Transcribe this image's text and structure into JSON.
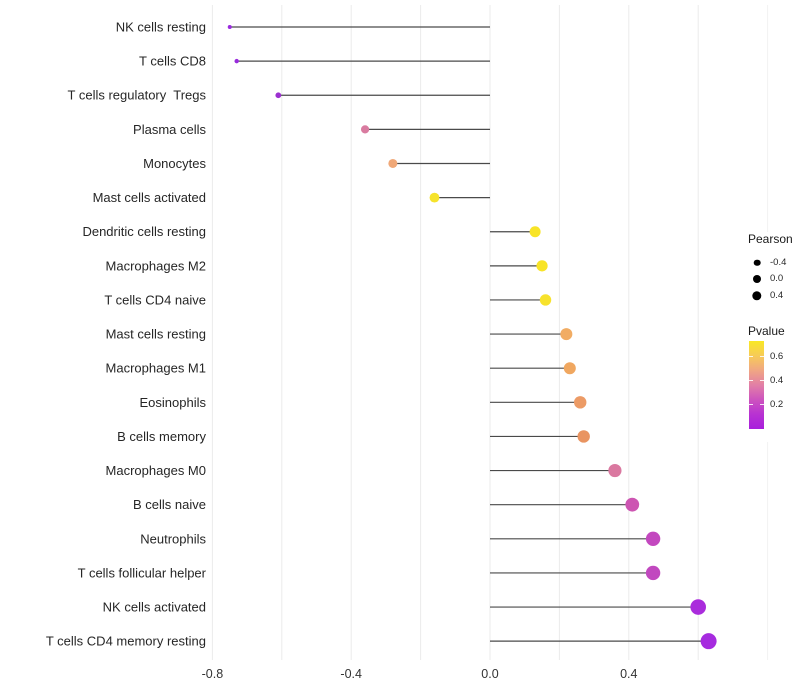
{
  "chart_data": {
    "type": "lollipop",
    "title": "",
    "xlabel": "",
    "ylabel": "",
    "x_axis": {
      "tick_labels": [
        "-0.8",
        "-0.4",
        "0.0",
        "0.4"
      ],
      "tick_values": [
        -0.8,
        -0.4,
        0.0,
        0.4
      ],
      "gridline_values": [
        -0.8,
        -0.6,
        -0.4,
        -0.2,
        0.0,
        0.2,
        0.4,
        0.6,
        0.8
      ],
      "range": [
        -0.9,
        0.85
      ],
      "grid": "vertical-only"
    },
    "rows": [
      {
        "label": "NK cells resting",
        "pearson": -0.75,
        "pvalue": 0.04,
        "color": "#9A2ADF",
        "radius": 2.0
      },
      {
        "label": "T cells CD8",
        "pearson": -0.73,
        "pvalue": 0.04,
        "color": "#982BDC",
        "radius": 2.2
      },
      {
        "label": "T cells regulatory  Tregs",
        "pearson": -0.61,
        "pvalue": 0.06,
        "color": "#9C30D0",
        "radius": 2.9
      },
      {
        "label": "Plasma cells",
        "pearson": -0.36,
        "pvalue": 0.3,
        "color": "#D97BA0",
        "radius": 4.1
      },
      {
        "label": "Monocytes",
        "pearson": -0.28,
        "pvalue": 0.44,
        "color": "#F0A878",
        "radius": 4.5
      },
      {
        "label": "Mast cells activated",
        "pearson": -0.16,
        "pvalue": 0.6,
        "color": "#F6E32B",
        "radius": 4.9
      },
      {
        "label": "Dendritic cells resting",
        "pearson": 0.13,
        "pvalue": 0.62,
        "color": "#F8E427",
        "radius": 5.5
      },
      {
        "label": "Macrophages M2",
        "pearson": 0.15,
        "pvalue": 0.62,
        "color": "#F8E427",
        "radius": 5.6
      },
      {
        "label": "T cells CD4 naive",
        "pearson": 0.16,
        "pvalue": 0.61,
        "color": "#F7E22C",
        "radius": 5.7
      },
      {
        "label": "Mast cells resting",
        "pearson": 0.22,
        "pvalue": 0.45,
        "color": "#F1AC63",
        "radius": 6.0
      },
      {
        "label": "Macrophages M1",
        "pearson": 0.23,
        "pvalue": 0.44,
        "color": "#F0A760",
        "radius": 6.0
      },
      {
        "label": "Eosinophils",
        "pearson": 0.26,
        "pvalue": 0.41,
        "color": "#EC9B66",
        "radius": 6.2
      },
      {
        "label": "B cells memory",
        "pearson": 0.27,
        "pvalue": 0.4,
        "color": "#E99461",
        "radius": 6.2
      },
      {
        "label": "Macrophages M0",
        "pearson": 0.36,
        "pvalue": 0.3,
        "color": "#DA78A0",
        "radius": 6.6
      },
      {
        "label": "B cells naive",
        "pearson": 0.41,
        "pvalue": 0.23,
        "color": "#CD55B2",
        "radius": 6.9
      },
      {
        "label": "Neutrophils",
        "pearson": 0.47,
        "pvalue": 0.19,
        "color": "#C348BF",
        "radius": 7.2
      },
      {
        "label": "T cells follicular helper",
        "pearson": 0.47,
        "pvalue": 0.19,
        "color": "#C148BF",
        "radius": 7.2
      },
      {
        "label": "NK cells activated",
        "pearson": 0.6,
        "pvalue": 0.08,
        "color": "#AA2CDC",
        "radius": 7.8
      },
      {
        "label": "T cells CD4 memory resting",
        "pearson": 0.63,
        "pvalue": 0.07,
        "color": "#A62BDF",
        "radius": 8.0
      }
    ],
    "legend": {
      "size": {
        "title": "Pearson",
        "entries": [
          {
            "label": "-0.4",
            "diameter": 6.6
          },
          {
            "label": "0.0",
            "diameter": 8.0
          },
          {
            "label": "0.4",
            "diameter": 9.4
          }
        ]
      },
      "colorbar": {
        "title": "Pvalue",
        "range_top": 0.73,
        "range_bottom": 0.0,
        "ticks": [
          {
            "label": "0.6",
            "value": 0.6
          },
          {
            "label": "0.4",
            "value": 0.4
          },
          {
            "label": "0.2",
            "value": 0.2
          }
        ],
        "stops": [
          "#F9E824",
          "#F7CB58",
          "#F0A683",
          "#E27FA6",
          "#CD53BE",
          "#B832D2",
          "#A81FDC"
        ]
      }
    },
    "colors": {
      "stem": "#4A4A4A",
      "gridline": "#EBEBEB",
      "gridline_faint": "#F2F2F2",
      "axis_text": "#333333",
      "label_text": "#262626",
      "legend_dot": "#000000"
    }
  }
}
